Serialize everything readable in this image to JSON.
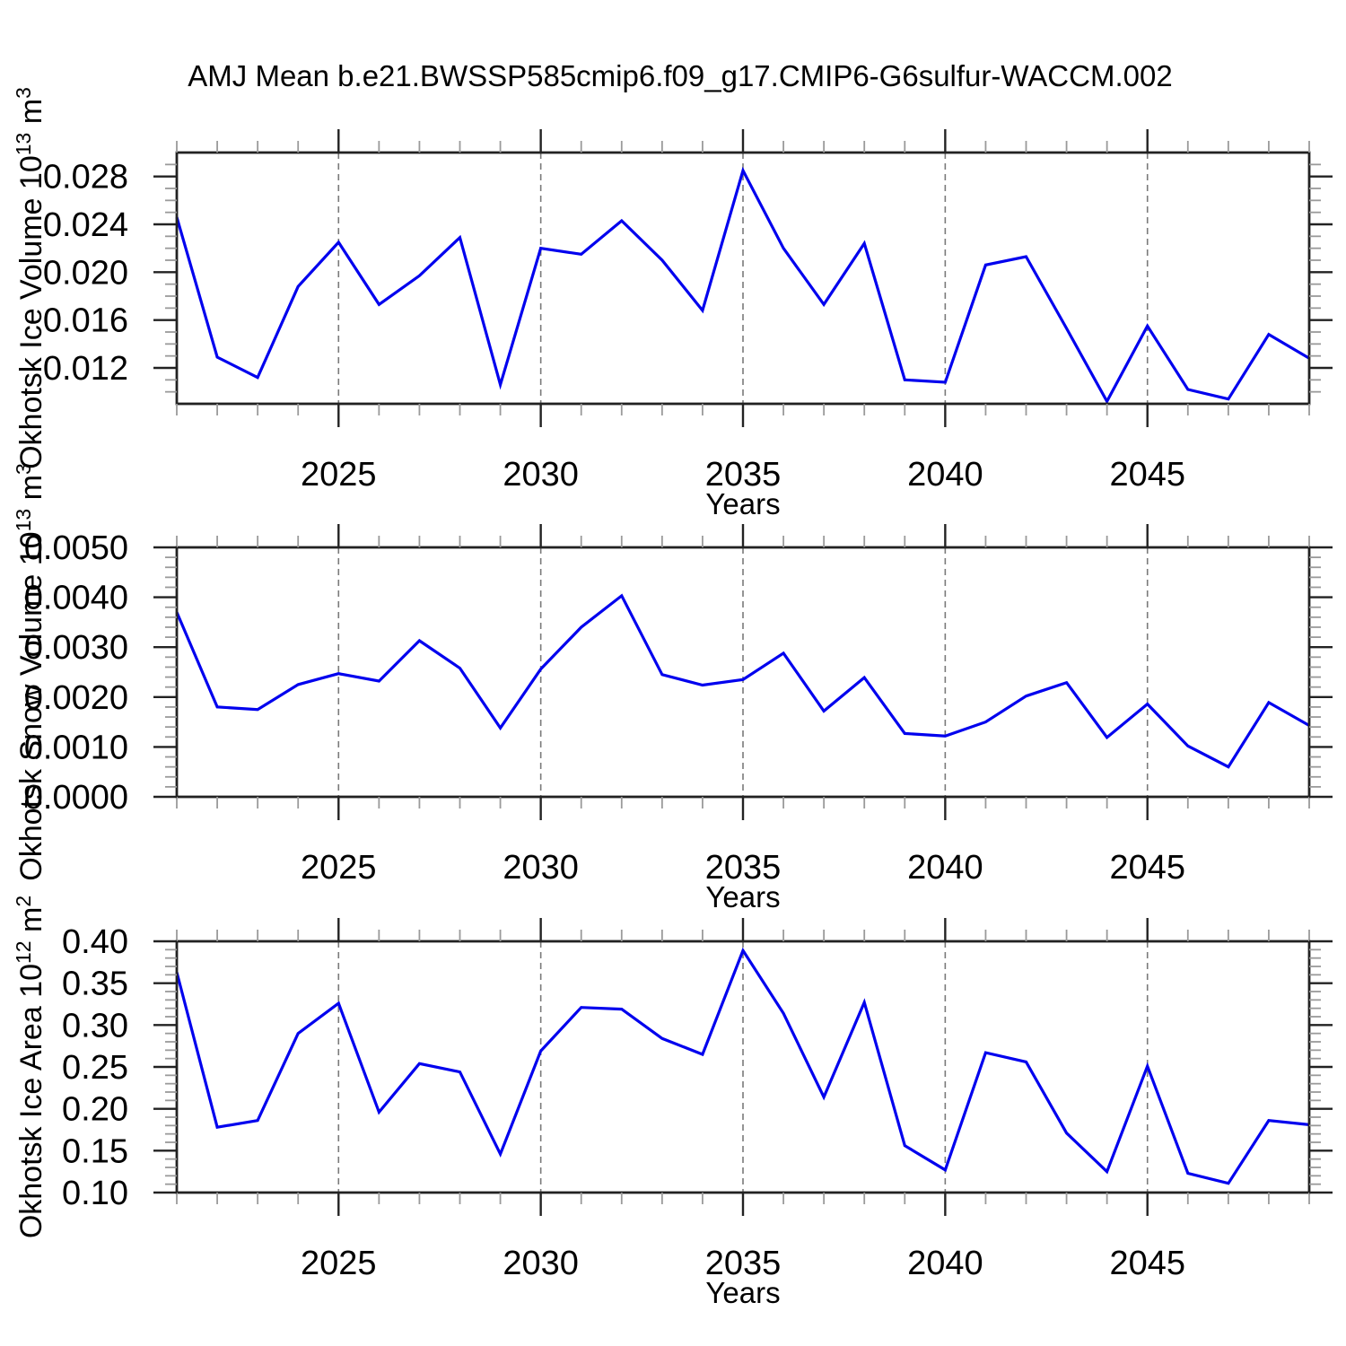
{
  "title": "AMJ Mean b.e21.BWSSP585cmip6.f09_g17.CMIP6-G6sulfur-WACCM.002",
  "colors": {
    "line": "#0000ee",
    "grid": "#7a7a7a",
    "axis": "#222222",
    "minor_tick": "#9a9a9a",
    "text": "#000000",
    "background": "#ffffff"
  },
  "x_axis": {
    "label": "Years",
    "min": 2021,
    "max": 2049,
    "major_ticks": [
      2025,
      2030,
      2035,
      2040,
      2045
    ],
    "minor_step": 1,
    "gridlines": "dashed-vertical-at-major-ticks"
  },
  "chart_data": [
    {
      "type": "line",
      "id": "ice-volume",
      "ylabel": {
        "text": "Okhotsk Ice Volume",
        "power_base": "10",
        "power_exp": "13",
        "unit": "m",
        "unit_exp": "3"
      },
      "xlabel": "Years",
      "legend_position": "none",
      "grid": "vertical-dashed-only",
      "ylim": [
        0.009,
        0.03
      ],
      "yticks": [
        0.012,
        0.016,
        0.02,
        0.024,
        0.028
      ],
      "ytick_labels": [
        "0.012",
        "0.016",
        "0.020",
        "0.024",
        "0.028"
      ],
      "y_minor_step": 0.001,
      "x": [
        2021,
        2022,
        2023,
        2024,
        2025,
        2026,
        2027,
        2028,
        2029,
        2030,
        2031,
        2032,
        2033,
        2034,
        2035,
        2036,
        2037,
        2038,
        2039,
        2040,
        2041,
        2042,
        2043,
        2044,
        2045,
        2046,
        2047,
        2048,
        2049
      ],
      "values": [
        0.0246,
        0.0129,
        0.0112,
        0.0188,
        0.0225,
        0.0173,
        0.0197,
        0.0229,
        0.0106,
        0.022,
        0.0215,
        0.0243,
        0.021,
        0.0168,
        0.0285,
        0.022,
        0.0173,
        0.0224,
        0.011,
        0.0108,
        0.0206,
        0.0213,
        0.0153,
        0.0092,
        0.0155,
        0.0102,
        0.0094,
        0.0148,
        0.0128
      ]
    },
    {
      "type": "line",
      "id": "snow-volume",
      "ylabel": {
        "text": "Okhotsk Snow Volume",
        "power_base": "10",
        "power_exp": "13",
        "unit": "m",
        "unit_exp": "3"
      },
      "xlabel": "Years",
      "legend_position": "none",
      "grid": "vertical-dashed-only",
      "ylim": [
        0.0,
        0.005
      ],
      "yticks": [
        0.0,
        0.001,
        0.002,
        0.003,
        0.004,
        0.005
      ],
      "ytick_labels": [
        "0.0000",
        "0.0010",
        "0.0020",
        "0.0030",
        "0.0040",
        "0.0050"
      ],
      "y_minor_step": 0.0002,
      "x": [
        2021,
        2022,
        2023,
        2024,
        2025,
        2026,
        2027,
        2028,
        2029,
        2030,
        2031,
        2032,
        2033,
        2034,
        2035,
        2036,
        2037,
        2038,
        2039,
        2040,
        2041,
        2042,
        2043,
        2044,
        2045,
        2046,
        2047,
        2048,
        2049
      ],
      "values": [
        0.0037,
        0.0018,
        0.00175,
        0.00225,
        0.00247,
        0.00232,
        0.00313,
        0.00258,
        0.00138,
        0.00256,
        0.0034,
        0.00403,
        0.00245,
        0.00224,
        0.00235,
        0.00288,
        0.00172,
        0.00239,
        0.00127,
        0.00122,
        0.0015,
        0.00202,
        0.00229,
        0.00119,
        0.00186,
        0.00102,
        0.0006,
        0.00189,
        0.00143
      ]
    },
    {
      "type": "line",
      "id": "ice-area",
      "ylabel": {
        "text": "Okhotsk Ice Area",
        "power_base": "10",
        "power_exp": "12",
        "unit": "m",
        "unit_exp": "2"
      },
      "xlabel": "Years",
      "legend_position": "none",
      "grid": "vertical-dashed-only",
      "ylim": [
        0.1,
        0.4
      ],
      "yticks": [
        0.1,
        0.15,
        0.2,
        0.25,
        0.3,
        0.35,
        0.4
      ],
      "ytick_labels": [
        "0.10",
        "0.15",
        "0.20",
        "0.25",
        "0.30",
        "0.35",
        "0.40"
      ],
      "y_minor_step": 0.01,
      "x": [
        2021,
        2022,
        2023,
        2024,
        2025,
        2026,
        2027,
        2028,
        2029,
        2030,
        2031,
        2032,
        2033,
        2034,
        2035,
        2036,
        2037,
        2038,
        2039,
        2040,
        2041,
        2042,
        2043,
        2044,
        2045,
        2046,
        2047,
        2048,
        2049
      ],
      "values": [
        0.363,
        0.178,
        0.186,
        0.29,
        0.326,
        0.196,
        0.254,
        0.244,
        0.146,
        0.269,
        0.321,
        0.319,
        0.284,
        0.265,
        0.389,
        0.314,
        0.214,
        0.327,
        0.156,
        0.127,
        0.267,
        0.256,
        0.171,
        0.125,
        0.251,
        0.123,
        0.111,
        0.186,
        0.181
      ]
    }
  ]
}
